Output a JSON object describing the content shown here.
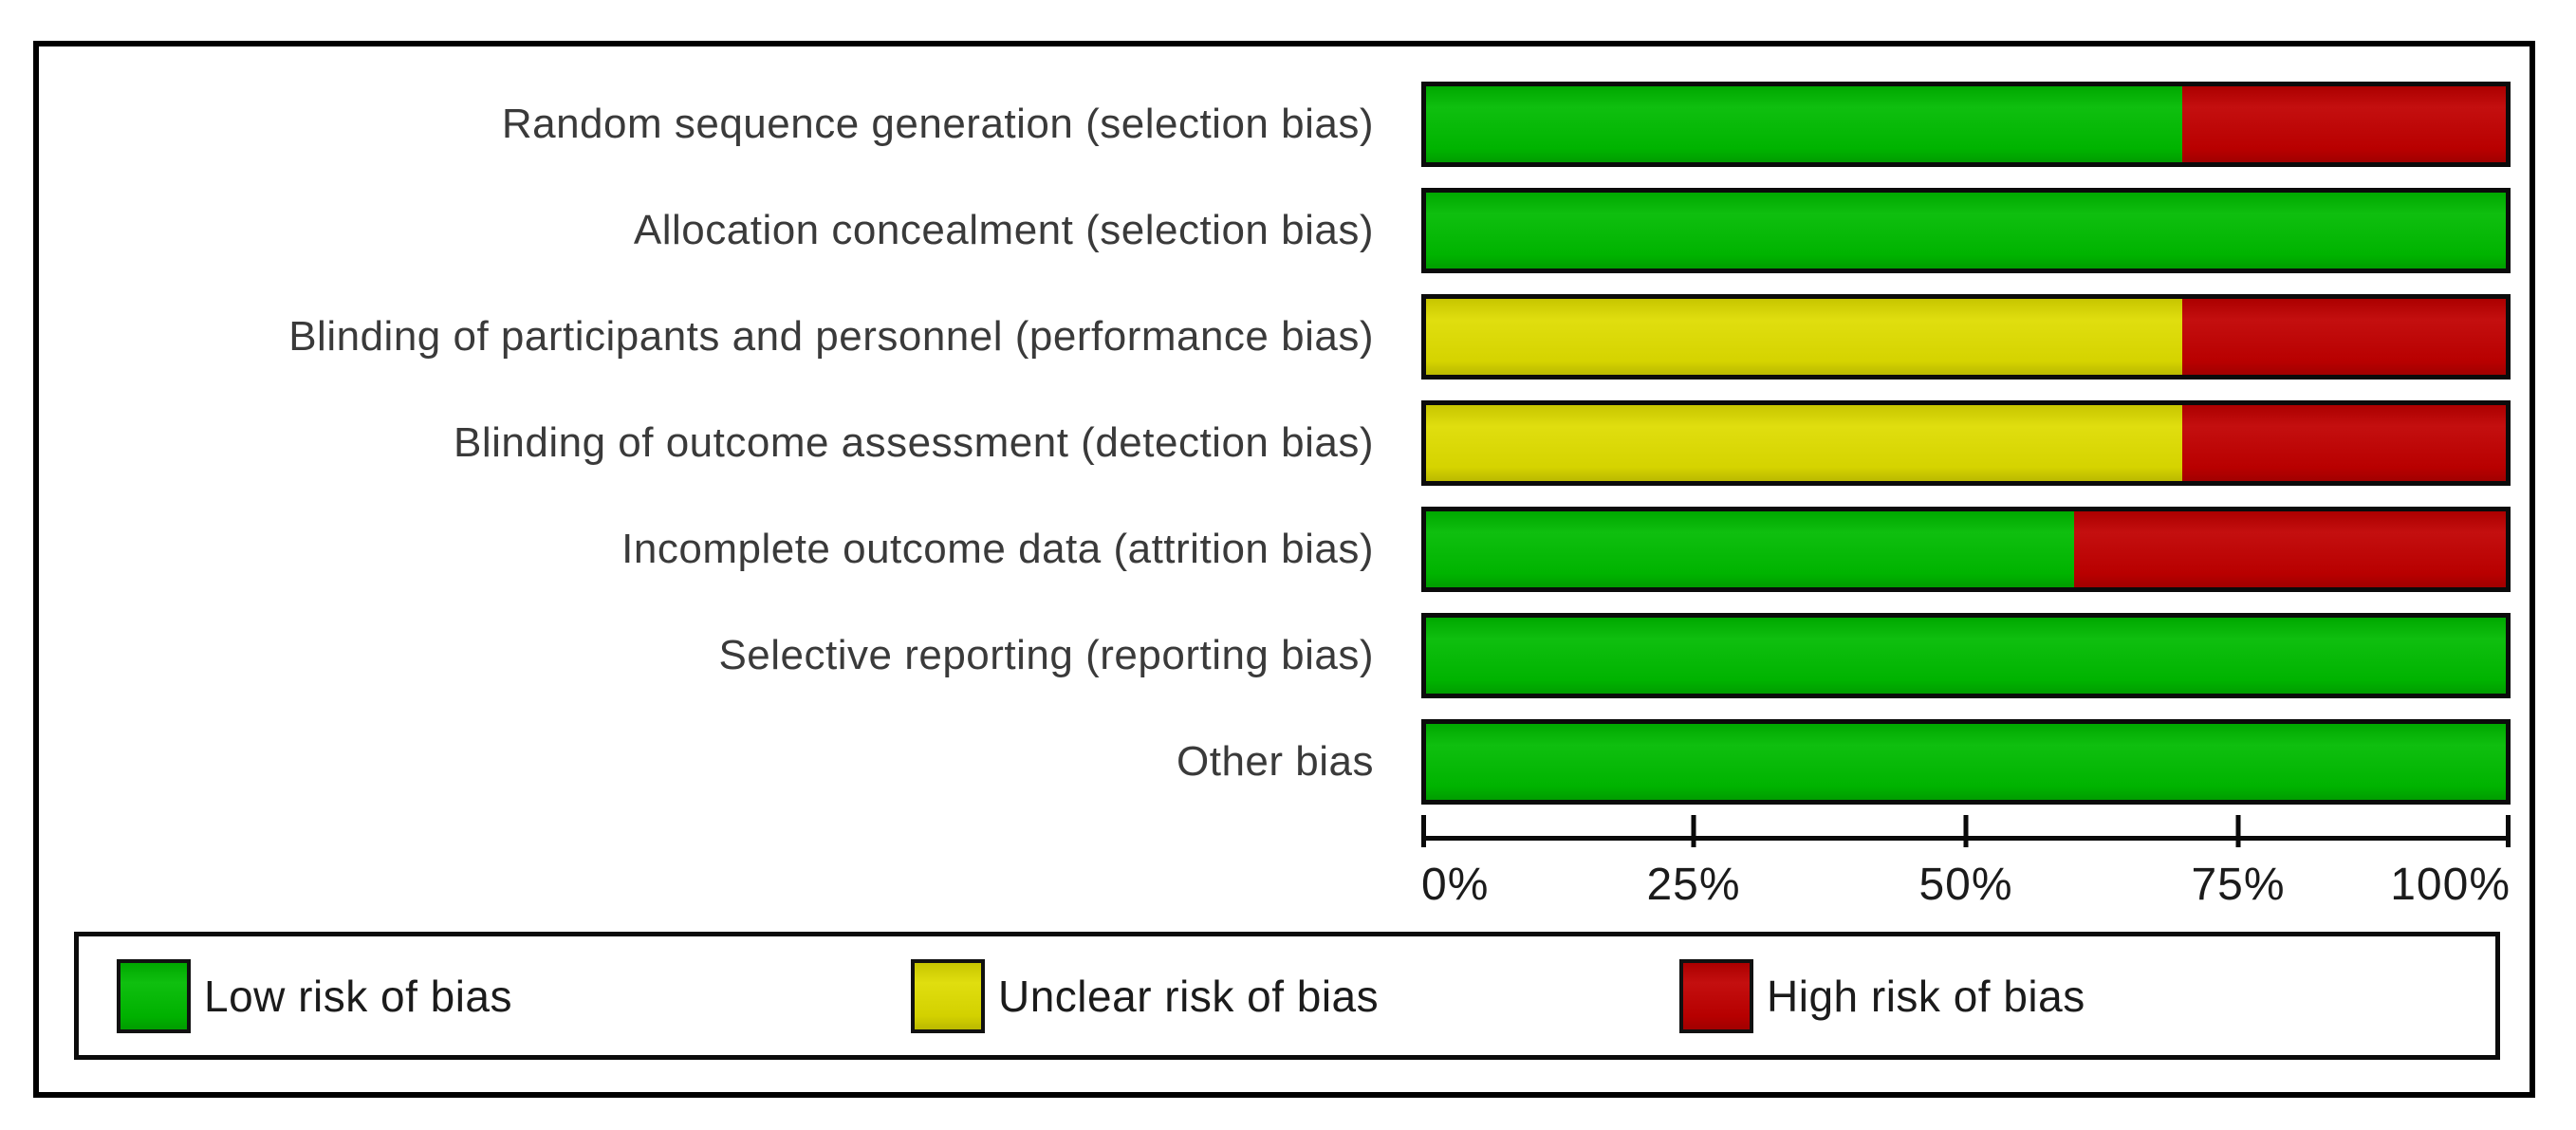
{
  "chart_data": {
    "type": "bar",
    "orientation": "horizontal",
    "stacked": true,
    "title": "",
    "xlabel": "",
    "ylabel": "",
    "value_unit": "percent",
    "xlim": [
      0,
      100
    ],
    "grid": false,
    "legend_position": "bottom",
    "categories": [
      "Random sequence generation (selection bias)",
      "Allocation concealment (selection bias)",
      "Blinding of participants and personnel (performance bias)",
      "Blinding of outcome assessment (detection bias)",
      "Incomplete outcome data (attrition bias)",
      "Selective reporting (reporting bias)",
      "Other bias"
    ],
    "series": [
      {
        "name": "Low risk of bias",
        "color": "#00bb00",
        "values": [
          70,
          100,
          0,
          0,
          60,
          100,
          100
        ]
      },
      {
        "name": "Unclear risk of bias",
        "color": "#dedc00",
        "values": [
          0,
          0,
          70,
          70,
          0,
          0,
          0
        ]
      },
      {
        "name": "High risk of bias",
        "color": "#c00000",
        "values": [
          30,
          0,
          30,
          30,
          40,
          0,
          0
        ]
      }
    ],
    "x_ticks": [
      {
        "label": "0%",
        "value": 0
      },
      {
        "label": "25%",
        "value": 25
      },
      {
        "label": "50%",
        "value": 50
      },
      {
        "label": "75%",
        "value": 75
      },
      {
        "label": "100%",
        "value": 100
      }
    ]
  },
  "legend": {
    "items": [
      {
        "label": "Low risk of bias",
        "color": "#00bb00"
      },
      {
        "label": "Unclear risk of bias",
        "color": "#dedc00"
      },
      {
        "label": "High risk of bias",
        "color": "#c00000"
      }
    ]
  }
}
